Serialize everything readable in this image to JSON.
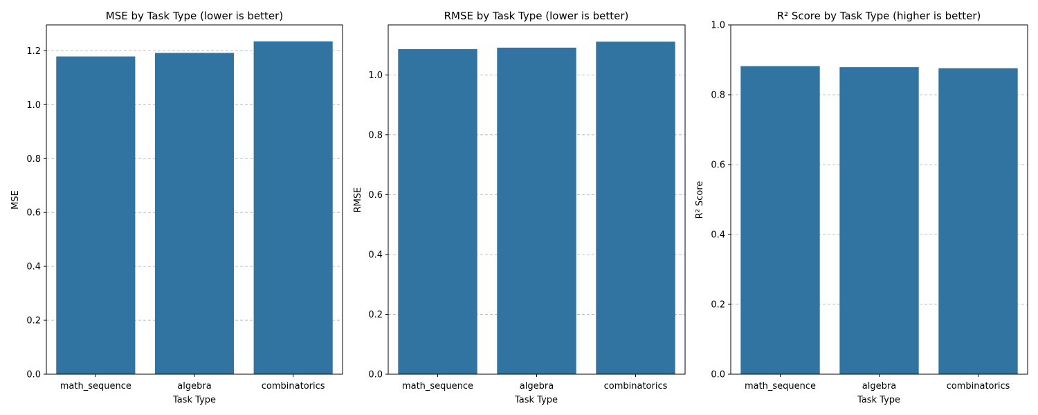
{
  "chart_data": [
    {
      "type": "bar",
      "title": "MSE by Task Type (lower is better)",
      "xlabel": "Task Type",
      "ylabel": "MSE",
      "categories": [
        "math_sequence",
        "algebra",
        "combinatorics"
      ],
      "values": [
        1.179,
        1.192,
        1.235
      ],
      "ylim": [
        0,
        1.296
      ],
      "yticks": [
        "0.0",
        "0.2",
        "0.4",
        "0.6",
        "0.8",
        "1.0",
        "1.2"
      ],
      "grid": "y-dashed",
      "color": "#3274a1"
    },
    {
      "type": "bar",
      "title": "RMSE by Task Type (lower is better)",
      "xlabel": "Task Type",
      "ylabel": "RMSE",
      "categories": [
        "math_sequence",
        "algebra",
        "combinatorics"
      ],
      "values": [
        1.086,
        1.091,
        1.111
      ],
      "ylim": [
        0,
        1.167
      ],
      "yticks": [
        "0.0",
        "0.2",
        "0.4",
        "0.6",
        "0.8",
        "1.0"
      ],
      "grid": "y-dashed",
      "color": "#3274a1"
    },
    {
      "type": "bar",
      "title": "R² Score by Task Type (higher is better)",
      "xlabel": "Task Type",
      "ylabel": "R² Score",
      "categories": [
        "math_sequence",
        "algebra",
        "combinatorics"
      ],
      "values": [
        0.882,
        0.879,
        0.876
      ],
      "ylim": [
        0,
        1.0
      ],
      "yticks": [
        "0.0",
        "0.2",
        "0.4",
        "0.6",
        "0.8",
        "1.0"
      ],
      "grid": "y-dashed",
      "color": "#3274a1"
    }
  ]
}
